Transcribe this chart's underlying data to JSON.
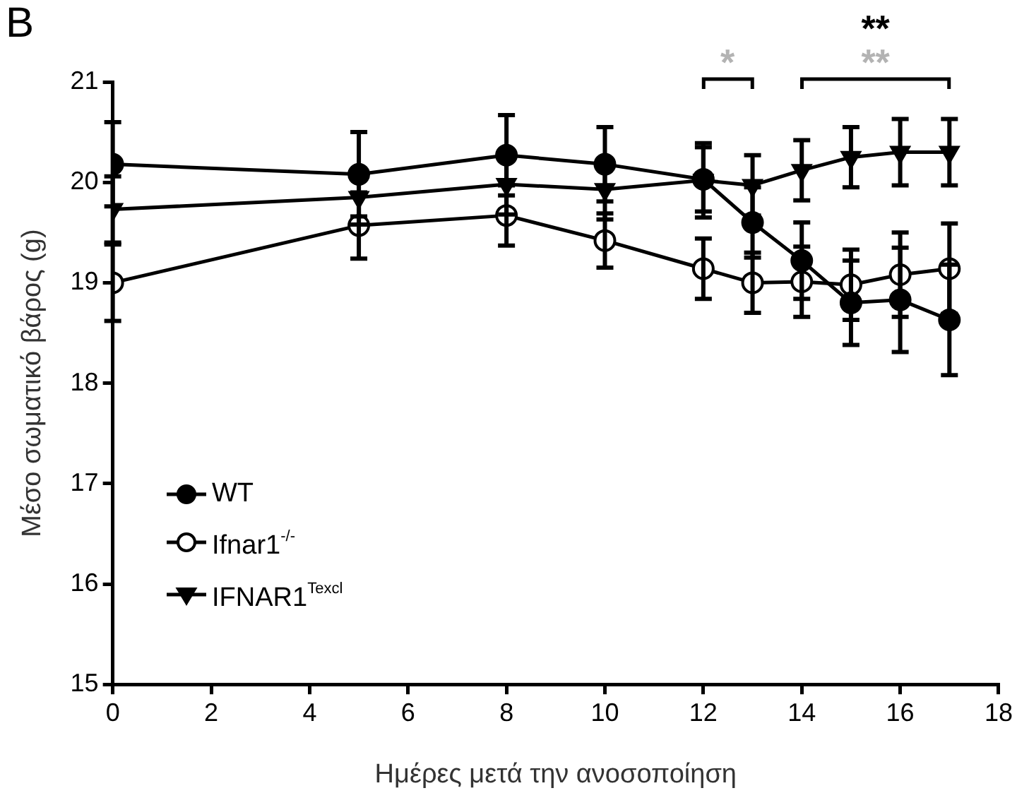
{
  "chart_data": {
    "type": "line",
    "xlabel": "Ημέρες μετά την ανοσοποίηση",
    "ylabel": "Μέσο σωματικό βάρος (g)",
    "x": [
      0,
      5,
      8,
      10,
      12,
      13,
      14,
      15,
      16,
      17
    ],
    "xlim": [
      0,
      18
    ],
    "xticks": [
      0,
      2,
      4,
      6,
      8,
      10,
      12,
      14,
      16,
      18
    ],
    "ylim": [
      15,
      21
    ],
    "yticks": [
      15,
      16,
      17,
      18,
      19,
      20,
      21
    ],
    "grid": false,
    "legend": "left",
    "line_style": "solid",
    "series": [
      {
        "name": "WT",
        "color": "#000000",
        "marker": "circle",
        "values": [
          20.18,
          20.08,
          20.27,
          20.18,
          20.03,
          19.6,
          19.22,
          18.8,
          18.83,
          18.63
        ],
        "errors": [
          0.42,
          0.42,
          0.4,
          0.37,
          0.32,
          0.35,
          0.38,
          0.42,
          0.52,
          0.55
        ]
      },
      {
        "name": "Ifnar1$^{-/-}$",
        "color": "#000000",
        "marker": "circle",
        "colors": [
          "#ffffff",
          "#ffffff",
          "#ffffff",
          "#ffffff",
          "#ffffff",
          "#ffffff",
          "#ffffff",
          "#ffffff",
          "#ffffff",
          "#ffffff"
        ],
        "values": [
          19.0,
          19.57,
          19.67,
          19.42,
          19.14,
          19.0,
          19.01,
          18.98,
          19.08,
          19.14
        ],
        "errors": [
          0.38,
          0.33,
          0.3,
          0.27,
          0.3,
          0.3,
          0.35,
          0.35,
          0.42,
          0.45
        ]
      },
      {
        "name": "IFNAR1$^{Texcl}$",
        "color": "#000000",
        "marker": "triangle",
        "values": [
          19.73,
          19.85,
          19.98,
          19.93,
          20.02,
          19.97,
          20.12,
          20.25,
          20.3,
          20.3
        ],
        "errors": [
          0.33,
          0.27,
          0.3,
          0.3,
          0.37,
          0.3,
          0.3,
          0.3,
          0.33,
          0.33
        ]
      }
    ],
    "annotations": [
      "B",
      "*",
      "**",
      "**"
    ]
  }
}
